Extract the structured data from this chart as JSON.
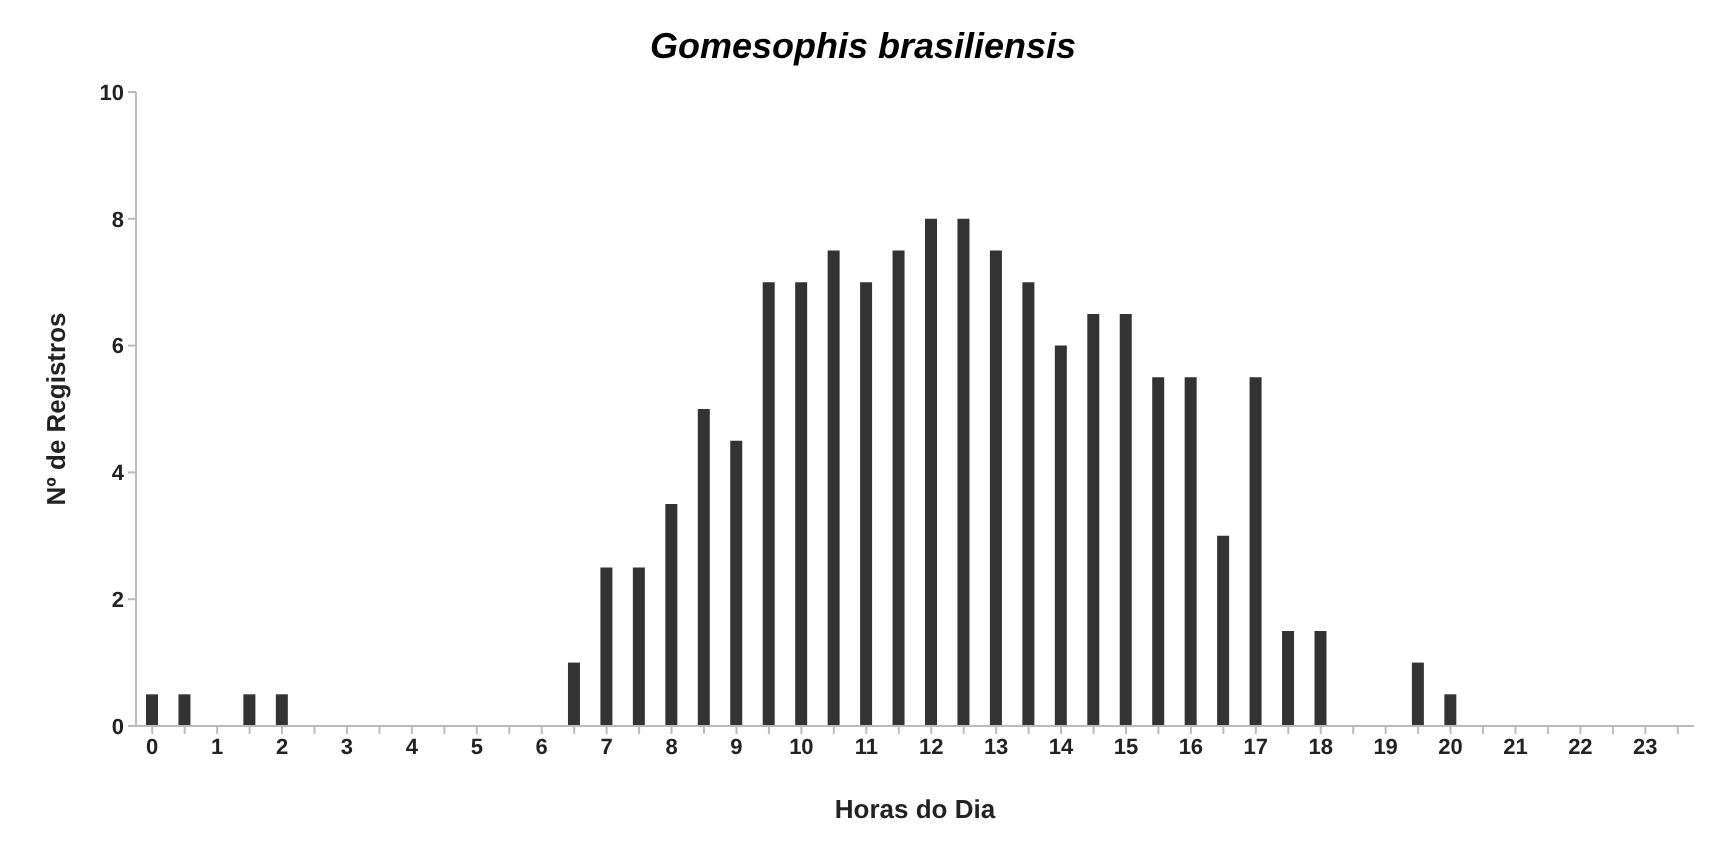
{
  "chart_data": {
    "type": "bar",
    "title": "Gomesophis brasiliensis",
    "xlabel": "Horas do Dia",
    "ylabel": "Nº de Registros",
    "x": [
      0,
      0.5,
      1,
      1.5,
      2,
      2.5,
      3,
      3.5,
      4,
      4.5,
      5,
      5.5,
      6,
      6.5,
      7,
      7.5,
      8,
      8.5,
      9,
      9.5,
      10,
      10.5,
      11,
      11.5,
      12,
      12.5,
      13,
      13.5,
      14,
      14.5,
      15,
      15.5,
      16,
      16.5,
      17,
      17.5,
      18,
      18.5,
      19,
      19.5,
      20,
      20.5,
      21,
      21.5,
      22,
      22.5,
      23,
      23.5
    ],
    "values": [
      0.5,
      0.5,
      0,
      0.5,
      0.5,
      0,
      0,
      0,
      0,
      0,
      0,
      0,
      0,
      1,
      2.5,
      2.5,
      3.5,
      5,
      4.5,
      7,
      7,
      7.5,
      7,
      7.5,
      8,
      8,
      7.5,
      7,
      6,
      6.5,
      6.5,
      5.5,
      5.5,
      3,
      5.5,
      1.5,
      1.5,
      0,
      0,
      1,
      0.5,
      0,
      0,
      0,
      0,
      0,
      0,
      0
    ],
    "color": "#333333",
    "xlim": [
      -0.25,
      23.75
    ],
    "xticks": [
      0,
      {
        "value": 0.5,
        "label": null
      },
      1,
      {
        "value": 1.5,
        "label": null
      },
      2,
      {
        "value": 2.5,
        "label": null
      },
      3,
      {
        "value": 3.5,
        "label": null
      },
      4,
      {
        "value": 4.5,
        "label": null
      },
      5,
      {
        "value": 5.5,
        "label": null
      },
      6,
      {
        "value": 6.5,
        "label": null
      },
      7,
      {
        "value": 7.5,
        "label": null
      },
      8,
      {
        "value": 8.5,
        "label": null
      },
      9,
      {
        "value": 9.5,
        "label": null
      },
      10,
      {
        "value": 10.5,
        "label": null
      },
      11,
      {
        "value": 11.5,
        "label": null
      },
      12,
      {
        "value": 12.5,
        "label": null
      },
      13,
      {
        "value": 13.5,
        "label": null
      },
      14,
      {
        "value": 14.5,
        "label": null
      },
      15,
      {
        "value": 15.5,
        "label": null
      },
      16,
      {
        "value": 16.5,
        "label": null
      },
      17,
      {
        "value": 17.5,
        "label": null
      },
      18,
      {
        "value": 18.5,
        "label": null
      },
      19,
      {
        "value": 19.5,
        "label": null
      },
      20,
      {
        "value": 20.5,
        "label": null
      },
      21,
      {
        "value": 21.5,
        "label": null
      },
      22,
      {
        "value": 22.5,
        "label": null
      },
      23,
      {
        "value": 23.5,
        "label": null
      }
    ],
    "ylim": [
      0,
      10
    ],
    "yticks": [
      0,
      2,
      4,
      6,
      8,
      10
    ],
    "grid": false
  }
}
